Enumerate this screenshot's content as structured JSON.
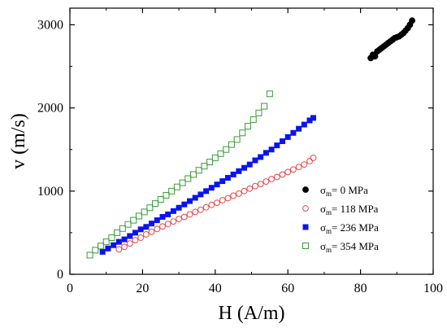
{
  "chart_data": {
    "type": "scatter",
    "xlabel": "H (A/m)",
    "ylabel": "v (m/s)",
    "xlim": [
      0,
      100
    ],
    "ylim": [
      0,
      3200
    ],
    "xticks": [
      0,
      20,
      40,
      60,
      80,
      100
    ],
    "yticks": [
      0,
      1000,
      2000,
      3000
    ],
    "grid": false,
    "legend_position": "bottom-right",
    "series": [
      {
        "name": "σm= 0 MPa",
        "marker": "filled-circle",
        "color": "#000000",
        "x": [
          82.8,
          83.4,
          84.0,
          84.6,
          85.2,
          85.8,
          86.4,
          87.0,
          87.6,
          88.2,
          88.8,
          89.4,
          90.0,
          90.6,
          91.2,
          91.8,
          92.4,
          93.0,
          93.6,
          94.2
        ],
        "y": [
          2600,
          2640,
          2620,
          2680,
          2700,
          2720,
          2740,
          2760,
          2780,
          2800,
          2820,
          2840,
          2850,
          2860,
          2880,
          2900,
          2930,
          2960,
          3000,
          3050
        ]
      },
      {
        "name": "σm= 118 MPa",
        "marker": "open-circle",
        "color": "#e8474a",
        "x": [
          13.5,
          15.0,
          16.5,
          18.0,
          19.5,
          21.0,
          22.5,
          24.0,
          25.5,
          27.0,
          28.5,
          30.0,
          31.5,
          33.0,
          34.5,
          36.0,
          37.5,
          39.0,
          40.5,
          42.0,
          43.5,
          45.0,
          46.5,
          48.0,
          49.5,
          51.0,
          52.5,
          54.0,
          55.5,
          57.0,
          58.5,
          60.0,
          61.5,
          63.0,
          64.5,
          66.0,
          67.0
        ],
        "y": [
          300,
          330,
          370,
          410,
          440,
          480,
          510,
          545,
          575,
          605,
          635,
          665,
          690,
          720,
          750,
          775,
          805,
          835,
          860,
          890,
          915,
          945,
          970,
          1000,
          1030,
          1060,
          1085,
          1115,
          1145,
          1170,
          1200,
          1230,
          1260,
          1290,
          1320,
          1360,
          1400
        ]
      },
      {
        "name": "σm= 236 MPa",
        "marker": "filled-square",
        "color": "#0a14f0",
        "x": [
          9.0,
          10.5,
          12.0,
          13.5,
          15.0,
          16.5,
          18.0,
          19.5,
          21.0,
          22.5,
          24.0,
          25.5,
          27.0,
          28.5,
          30.0,
          31.5,
          33.0,
          34.5,
          36.0,
          37.5,
          39.0,
          40.5,
          42.0,
          43.5,
          45.0,
          46.5,
          48.0,
          49.5,
          51.0,
          52.5,
          54.0,
          55.5,
          57.0,
          58.5,
          60.0,
          61.5,
          63.0,
          64.5,
          66.0,
          67.0
        ],
        "y": [
          270,
          310,
          350,
          390,
          420,
          460,
          500,
          540,
          570,
          610,
          650,
          690,
          720,
          760,
          800,
          840,
          880,
          920,
          960,
          1000,
          1040,
          1080,
          1120,
          1160,
          1200,
          1240,
          1280,
          1320,
          1370,
          1410,
          1460,
          1500,
          1550,
          1600,
          1650,
          1700,
          1750,
          1800,
          1850,
          1880
        ]
      },
      {
        "name": "σm=  354 MPa",
        "marker": "open-square",
        "color": "#3a9b3a",
        "x": [
          5.5,
          7.0,
          8.5,
          10.0,
          11.5,
          13.0,
          14.5,
          16.0,
          17.5,
          19.0,
          20.5,
          22.0,
          23.5,
          25.0,
          26.5,
          28.0,
          29.5,
          31.0,
          32.5,
          34.0,
          35.5,
          37.0,
          38.5,
          40.0,
          41.5,
          43.0,
          44.5,
          46.0,
          47.5,
          49.0,
          50.5,
          52.0,
          53.5,
          55.0
        ],
        "y": [
          230,
          290,
          340,
          390,
          440,
          500,
          550,
          600,
          650,
          700,
          750,
          800,
          850,
          900,
          950,
          1000,
          1050,
          1100,
          1150,
          1200,
          1250,
          1300,
          1350,
          1400,
          1450,
          1500,
          1560,
          1620,
          1700,
          1780,
          1860,
          1940,
          2020,
          2170
        ]
      }
    ]
  }
}
